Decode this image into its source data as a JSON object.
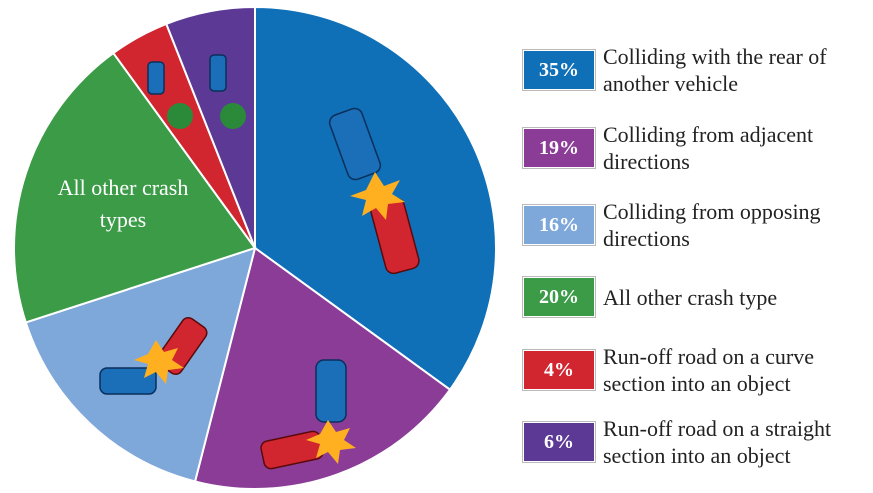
{
  "chart_data": {
    "type": "pie",
    "series": [
      {
        "name": "Colliding with the rear of another vehicle",
        "color": "#0f6fb7",
        "value": 35,
        "value_label": "35%"
      },
      {
        "name": "Colliding from adjacent directions",
        "color": "#8a3c97",
        "value": 19,
        "value_label": "19%"
      },
      {
        "name": "Colliding from opposing directions",
        "color": "#7ea7da",
        "value": 16,
        "value_label": "16%"
      },
      {
        "name": "All other crash type",
        "color": "#3b9b47",
        "value": 20,
        "value_label": "20%"
      },
      {
        "name": "Run-off road on a curve section into an object",
        "color": "#d1262f",
        "value": 4,
        "value_label": "4%"
      },
      {
        "name": "Run-off road on a straight section into an object",
        "color": "#5b3995",
        "value": 6,
        "value_label": "6%"
      }
    ],
    "annotation": "All other crash types"
  }
}
